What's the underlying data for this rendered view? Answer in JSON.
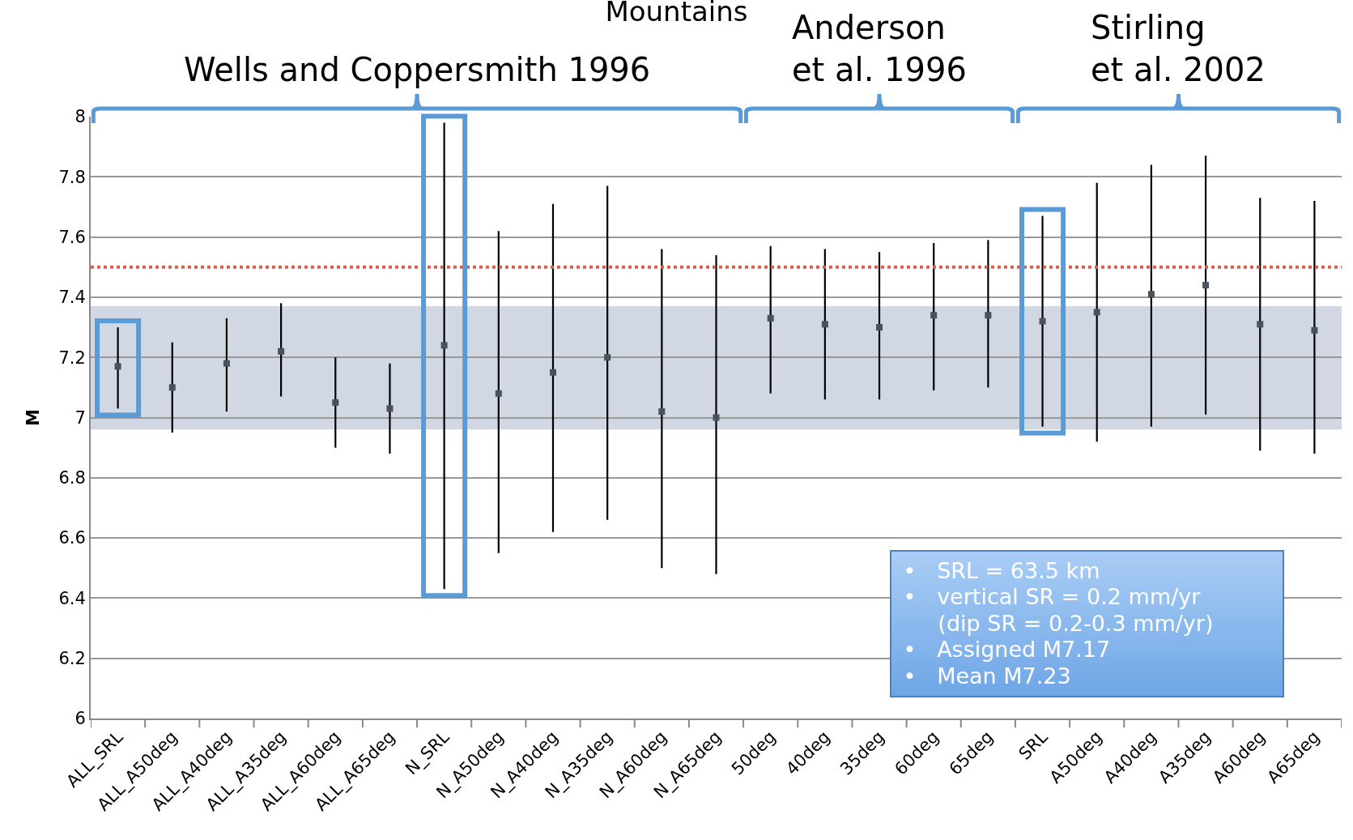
{
  "chart_data": {
    "type": "scatter",
    "title": "Mountains",
    "ylabel": "M",
    "categories": [
      "ALL_SRL",
      "ALL_A50deg",
      "ALL_A40deg",
      "ALL_A35deg",
      "ALL_A60deg",
      "ALL_A65deg",
      "N_SRL",
      "N_A50deg",
      "N_A40deg",
      "N_A35deg",
      "N_A60deg",
      "N_A65deg",
      "50deg",
      "40deg",
      "35deg",
      "60deg",
      "65deg",
      "SRL",
      "A50deg",
      "A40deg",
      "A35deg",
      "A60deg",
      "A65deg"
    ],
    "values": [
      7.17,
      7.1,
      7.18,
      7.22,
      7.05,
      7.03,
      7.24,
      7.08,
      7.15,
      7.2,
      7.02,
      7.0,
      7.33,
      7.31,
      7.3,
      7.34,
      7.34,
      7.32,
      7.35,
      7.41,
      7.44,
      7.31,
      7.29
    ],
    "errors": [
      [
        7.03,
        7.3
      ],
      [
        6.95,
        7.25
      ],
      [
        7.02,
        7.33
      ],
      [
        7.07,
        7.38
      ],
      [
        6.9,
        7.2
      ],
      [
        6.88,
        7.18
      ],
      [
        6.43,
        7.98
      ],
      [
        6.55,
        7.62
      ],
      [
        6.62,
        7.71
      ],
      [
        6.66,
        7.77
      ],
      [
        6.5,
        7.56
      ],
      [
        6.48,
        7.54
      ],
      [
        7.08,
        7.57
      ],
      [
        7.06,
        7.56
      ],
      [
        7.06,
        7.55
      ],
      [
        7.09,
        7.58
      ],
      [
        7.1,
        7.59
      ],
      [
        6.97,
        7.67
      ],
      [
        6.92,
        7.78
      ],
      [
        6.97,
        7.84
      ],
      [
        7.01,
        7.87
      ],
      [
        6.89,
        7.73
      ],
      [
        6.88,
        7.72
      ]
    ],
    "color": "#4a505c",
    "marker": "square",
    "ylim": [
      6,
      8
    ],
    "yticks": [
      6,
      6.2,
      6.4,
      6.6,
      6.8,
      7,
      7.2,
      7.4,
      7.6,
      7.8,
      8
    ],
    "grid": "y",
    "ref_lines": [
      {
        "axis": "y",
        "value": 7.5,
        "color": "#d0604f",
        "line_style": "dotted"
      }
    ],
    "bands": [
      {
        "axis": "y",
        "from": 6.96,
        "to": 7.37,
        "color": "#ccd3e0"
      }
    ],
    "annotations": [
      "Wells and Coppersmith 1996",
      "Anderson\net al. 1996",
      "Stirling\net al. 2002",
      "•   SRL = 63.5 km",
      "•   vertical SR = 0.2 mm/yr",
      "     (dip SR = 0.2-0.3 mm/yr)",
      "•   Assigned M7.17",
      "•   Mean M7.23"
    ]
  }
}
